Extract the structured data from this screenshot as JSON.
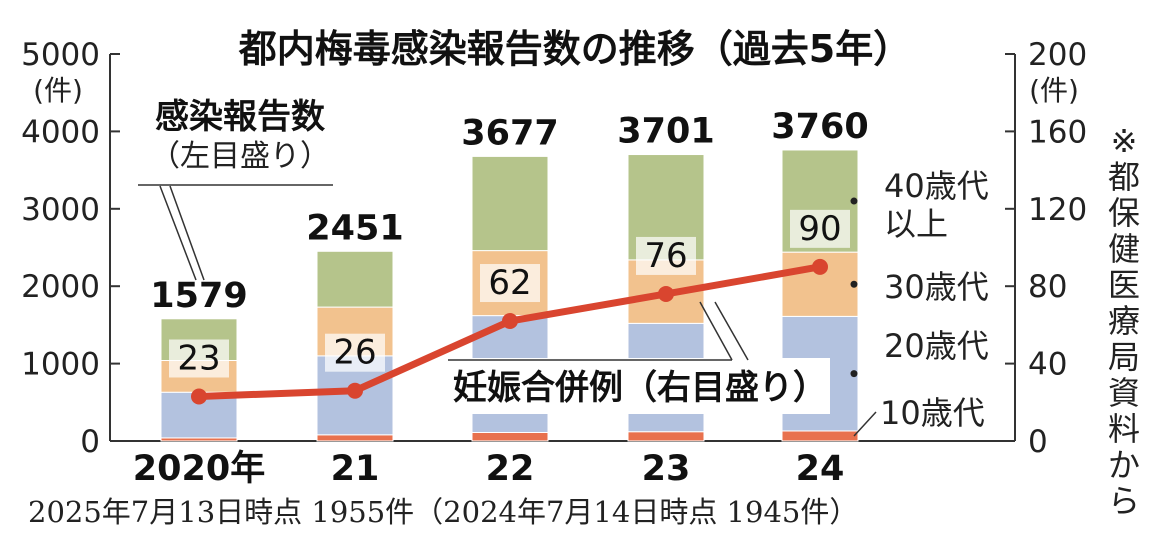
{
  "chart_data": {
    "type": "bar",
    "title": "都内梅毒感染報告数の推移（過去5年）",
    "categories": [
      "2020年",
      "21",
      "22",
      "23",
      "24"
    ],
    "totals": [
      1579,
      2451,
      3677,
      3701,
      3760
    ],
    "series": [
      {
        "name": "10歳代",
        "color": "#e8714e",
        "values": [
          40,
          80,
          110,
          120,
          130
        ]
      },
      {
        "name": "20歳代",
        "color": "#b3c2df",
        "values": [
          590,
          1020,
          1510,
          1400,
          1480
        ]
      },
      {
        "name": "30歳代",
        "color": "#f2c28e",
        "values": [
          410,
          630,
          840,
          820,
          830
        ]
      },
      {
        "name": "40歳代以上",
        "color": "#b5c48b",
        "values": [
          539,
          721,
          1217,
          1361,
          1320
        ]
      }
    ],
    "segment_labels": [
      "10歳代",
      "20歳代",
      "30歳代",
      "40歳代",
      "以上"
    ],
    "left_axis": {
      "unit": "(件)",
      "ylim": [
        0,
        5000
      ],
      "ticks": [
        "0",
        "1000",
        "2000",
        "3000",
        "4000",
        "5000"
      ]
    },
    "right_axis": {
      "unit": "(件)",
      "ylim": [
        0,
        200
      ],
      "ticks": [
        "0",
        "40",
        "80",
        "120",
        "160",
        "200"
      ]
    },
    "line": {
      "name": "妊娠合併例（右目盛り）",
      "color": "#d9452f",
      "values": [
        23,
        26,
        62,
        76,
        90
      ]
    },
    "annotations": {
      "bar_series_label": "感染報告数",
      "bar_series_sub": "（左目盛り）"
    },
    "footnote": "2025年7月13日時点 1955件（2024年7月14日時点 1945件）",
    "source": "※都保健医療局資料から"
  }
}
